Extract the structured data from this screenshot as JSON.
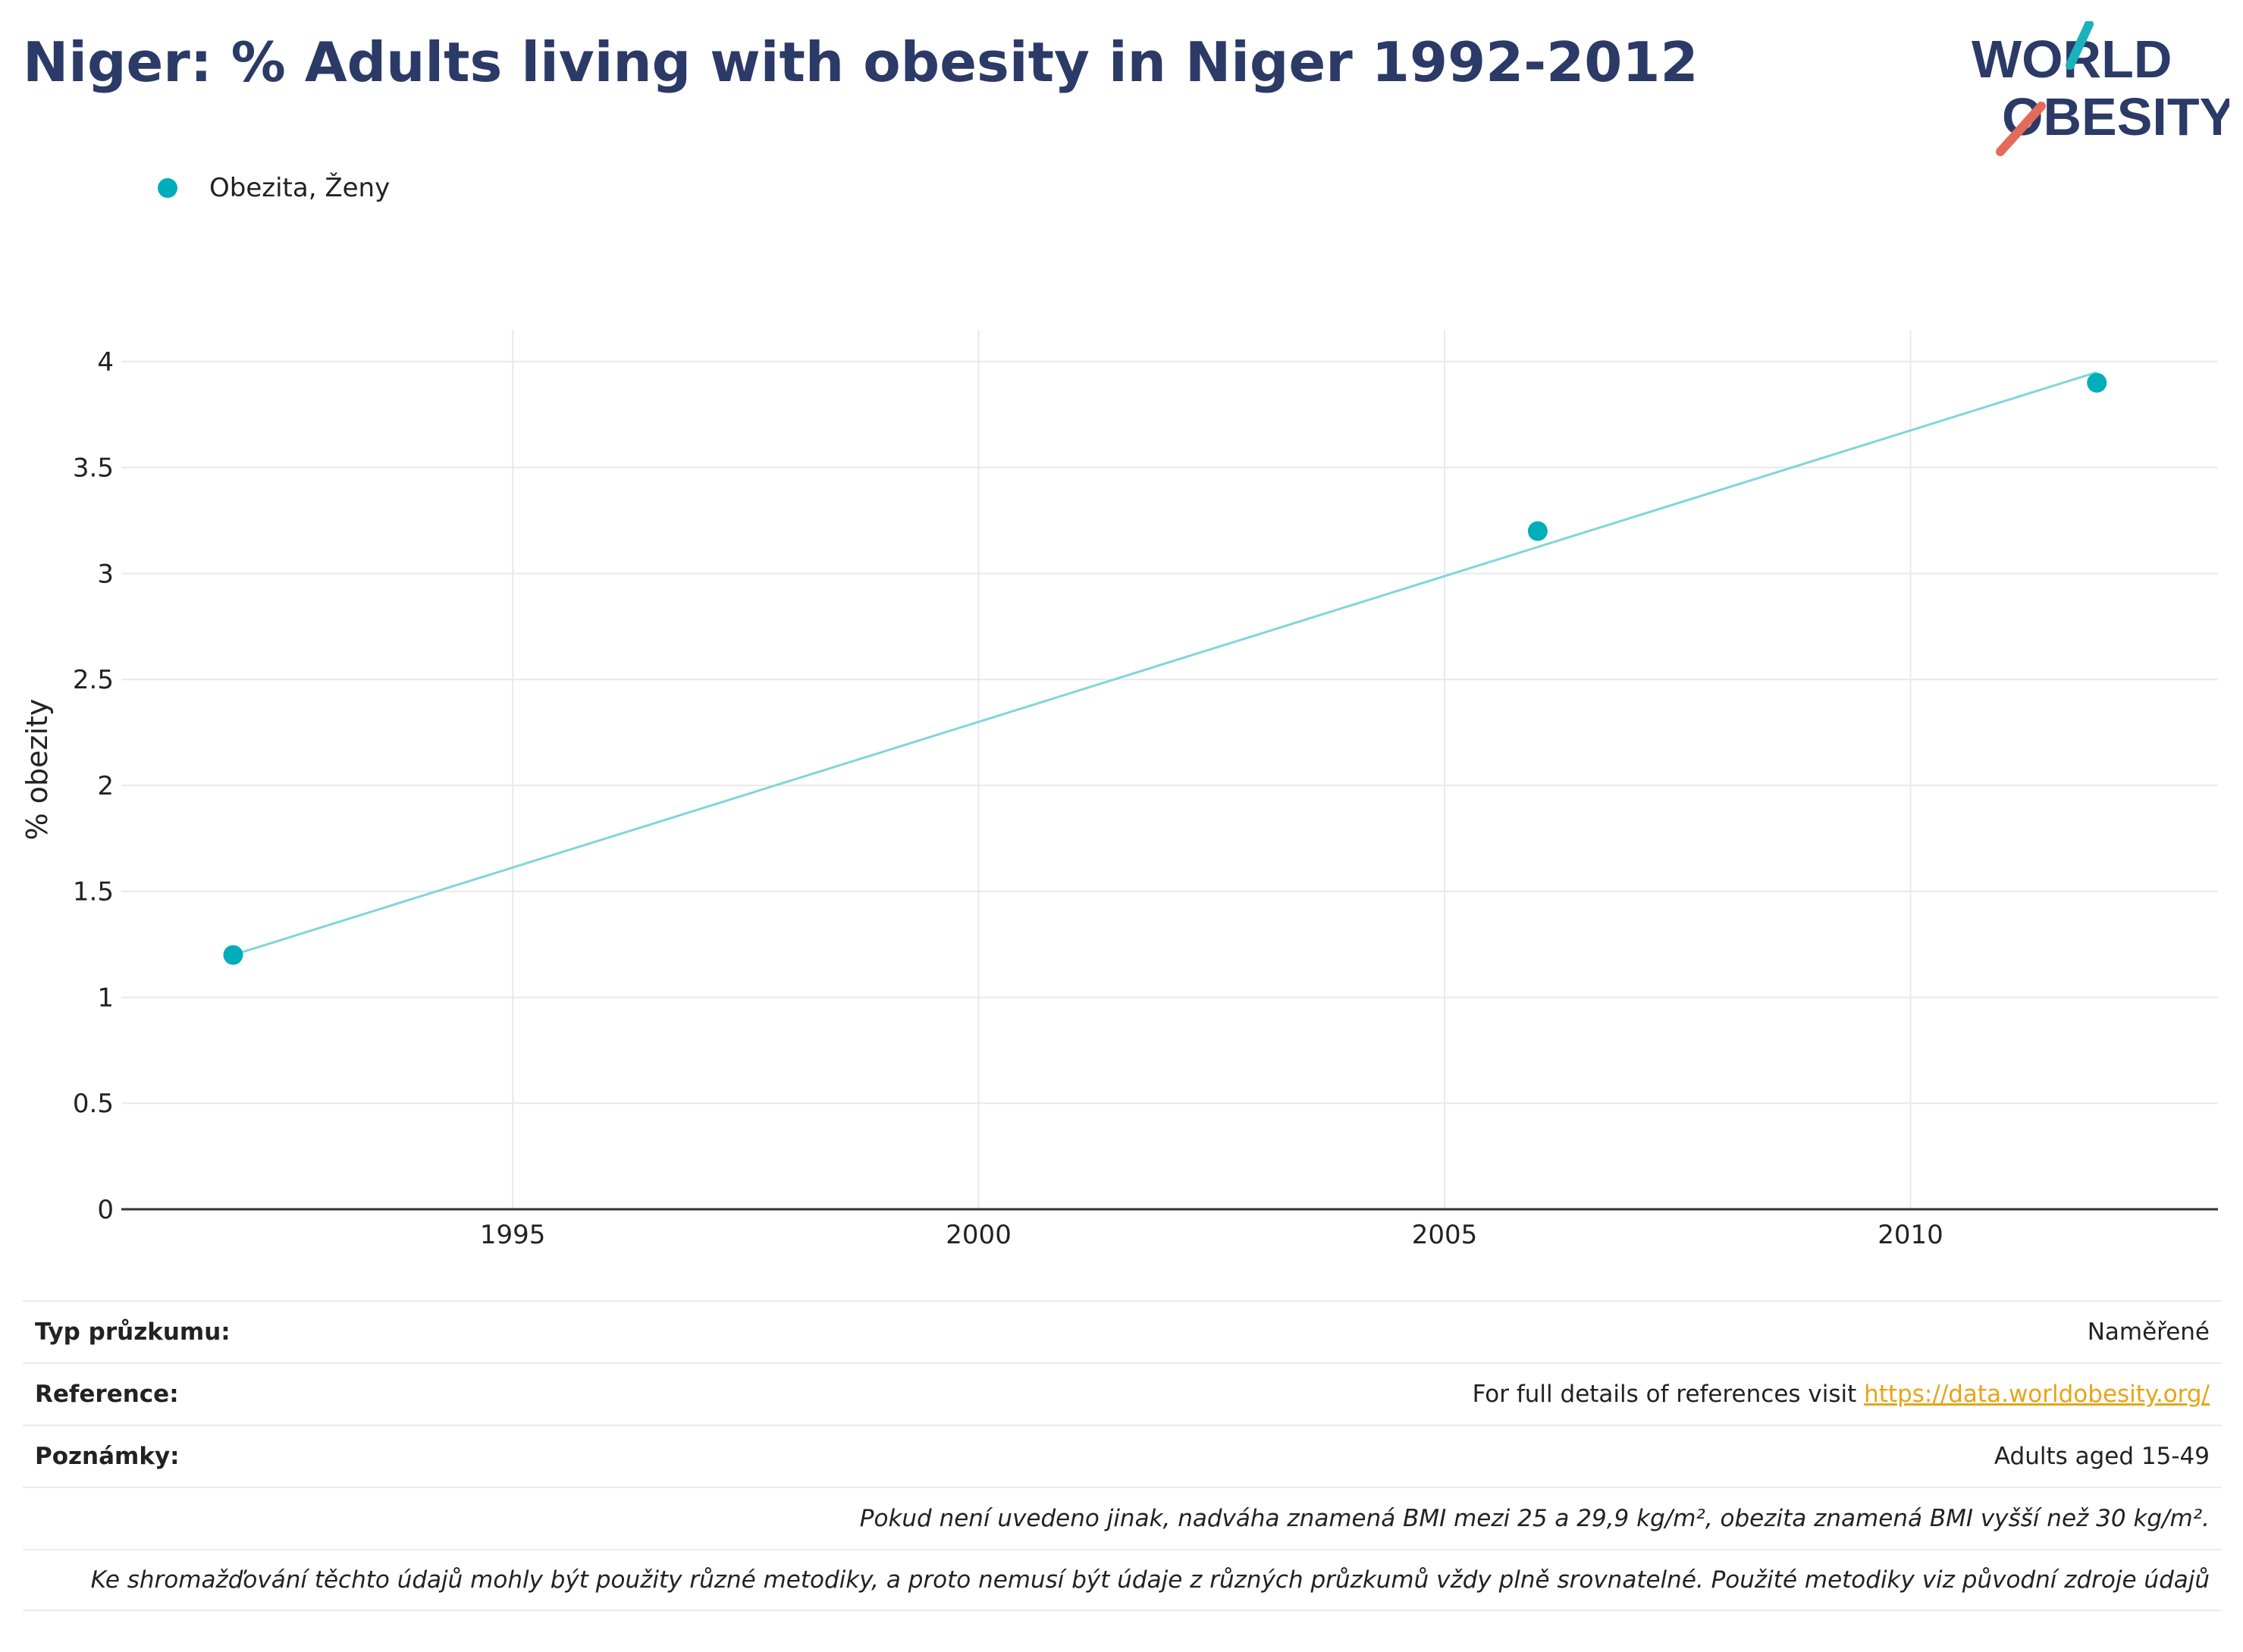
{
  "title": "Niger: % Adults living with obesity in Niger 1992-2012",
  "logo": {
    "line1": "WORLD",
    "line2": "OBESITY",
    "accent_teal": "#1ab2be",
    "accent_coral": "#e36b5a",
    "text_color": "#2b3a67"
  },
  "colors": {
    "series": "#00adbb",
    "trend": "#7fd6dd",
    "grid": "#e9e9ed",
    "axis": "#333333"
  },
  "chart_data": {
    "type": "scatter",
    "series": [
      {
        "name": "Obezita, Ženy",
        "x": [
          1992,
          2006,
          2012
        ],
        "y": [
          1.2,
          3.2,
          3.9
        ]
      }
    ],
    "trendline": {
      "x": [
        1992,
        2012
      ],
      "y": [
        1.2,
        3.95
      ]
    },
    "xlabel": "",
    "ylabel": "% obezity",
    "xlim": [
      1990.8,
      2013.3
    ],
    "ylim": [
      0,
      4.15
    ],
    "xticks": [
      1995,
      2000,
      2005,
      2010
    ],
    "yticks": [
      0,
      0.5,
      1,
      1.5,
      2,
      2.5,
      3,
      3.5,
      4
    ],
    "ytick_labels": [
      "0",
      "0.5",
      "1",
      "1.5",
      "2",
      "2.5",
      "3",
      "3.5",
      "4"
    ],
    "grid": true,
    "legend": "top-left"
  },
  "info": {
    "survey_type_label": "Typ průzkumu:",
    "survey_type_value": "Naměřené",
    "reference_label": "Reference:",
    "reference_text": "For full details of references visit ",
    "reference_link": "https://data.worldobesity.org/",
    "notes_label": "Poznámky:",
    "notes_value": "Adults aged 15-49",
    "note_bmi": "Pokud není uvedeno jinak, nadváha znamená BMI mezi 25 a 29,9 kg/m², obezita znamená BMI vyšší než 30 kg/m².",
    "note_methods": "Ke shromažďování těchto údajů mohly být použity různé metodiky, a proto nemusí být údaje z různých průzkumů vždy plně srovnatelné. Použité metodiky viz původní zdroje údajů"
  }
}
